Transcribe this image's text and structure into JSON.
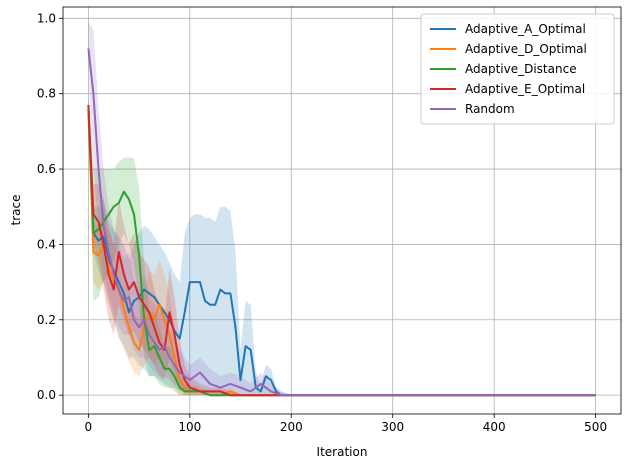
{
  "chart_data": {
    "type": "line",
    "title": "",
    "xlabel": "Iteration",
    "ylabel": "trace",
    "xlim": [
      -25,
      525
    ],
    "ylim": [
      -0.05,
      1.03
    ],
    "x_ticks": [
      0,
      100,
      200,
      300,
      400,
      500
    ],
    "y_ticks": [
      0.0,
      0.2,
      0.4,
      0.6,
      0.8,
      1.0
    ],
    "x_tick_labels": [
      "0",
      "100",
      "200",
      "300",
      "400",
      "500"
    ],
    "y_tick_labels": [
      "0.0",
      "0.2",
      "0.4",
      "0.6",
      "0.8",
      "1.0"
    ],
    "grid": true,
    "legend_position": "top-right",
    "band_opacity": 0.2,
    "series": [
      {
        "name": "Adaptive_A_Optimal",
        "color": "#1f77b4",
        "x": [
          0,
          5,
          10,
          15,
          20,
          25,
          30,
          35,
          40,
          45,
          50,
          55,
          60,
          65,
          70,
          75,
          80,
          85,
          90,
          95,
          100,
          105,
          110,
          115,
          120,
          125,
          130,
          135,
          140,
          145,
          150,
          155,
          160,
          165,
          170,
          175,
          180,
          185,
          190,
          200,
          250,
          300,
          350,
          400,
          450,
          500
        ],
        "y": [
          0.77,
          0.43,
          0.41,
          0.42,
          0.36,
          0.33,
          0.3,
          0.27,
          0.22,
          0.25,
          0.26,
          0.28,
          0.27,
          0.26,
          0.24,
          0.22,
          0.2,
          0.17,
          0.15,
          0.22,
          0.3,
          0.3,
          0.3,
          0.25,
          0.24,
          0.24,
          0.28,
          0.27,
          0.27,
          0.18,
          0.04,
          0.13,
          0.12,
          0.02,
          0.01,
          0.05,
          0.04,
          0.01,
          0.0,
          0.0,
          0.0,
          0.0,
          0.0,
          0.0,
          0.0,
          0.0
        ],
        "lower": [
          0.75,
          0.38,
          0.33,
          0.3,
          0.25,
          0.2,
          0.15,
          0.13,
          0.1,
          0.1,
          0.08,
          0.07,
          0.05,
          0.05,
          0.04,
          0.03,
          0.02,
          0.02,
          0.01,
          0.01,
          0.01,
          0.01,
          0.01,
          0.0,
          0.0,
          0.0,
          0.0,
          0.0,
          0.0,
          0.0,
          0.0,
          0.0,
          0.0,
          0.0,
          0.0,
          0.0,
          0.0,
          0.0,
          0.0,
          0.0,
          0.0,
          0.0,
          0.0,
          0.0,
          0.0,
          0.0
        ],
        "upper": [
          0.79,
          0.5,
          0.5,
          0.52,
          0.46,
          0.44,
          0.42,
          0.4,
          0.36,
          0.4,
          0.43,
          0.45,
          0.44,
          0.42,
          0.4,
          0.38,
          0.35,
          0.32,
          0.3,
          0.43,
          0.47,
          0.48,
          0.48,
          0.47,
          0.47,
          0.46,
          0.5,
          0.5,
          0.49,
          0.38,
          0.12,
          0.25,
          0.24,
          0.06,
          0.03,
          0.08,
          0.07,
          0.02,
          0.01,
          0.0,
          0.0,
          0.0,
          0.0,
          0.0,
          0.0,
          0.0
        ]
      },
      {
        "name": "Adaptive_D_Optimal",
        "color": "#ff7f0e",
        "x": [
          0,
          5,
          10,
          15,
          20,
          25,
          30,
          35,
          40,
          45,
          50,
          55,
          60,
          65,
          70,
          75,
          80,
          85,
          90,
          95,
          100,
          110,
          120,
          130,
          140,
          150,
          160,
          170,
          180,
          190,
          200,
          250,
          300,
          350,
          400,
          450,
          500
        ],
        "y": [
          0.76,
          0.38,
          0.37,
          0.4,
          0.34,
          0.3,
          0.28,
          0.23,
          0.18,
          0.14,
          0.12,
          0.18,
          0.22,
          0.2,
          0.24,
          0.2,
          0.16,
          0.1,
          0.04,
          0.02,
          0.01,
          0.01,
          0.0,
          0.0,
          0.01,
          0.0,
          0.0,
          0.0,
          0.0,
          0.0,
          0.0,
          0.0,
          0.0,
          0.0,
          0.0,
          0.0,
          0.0
        ],
        "lower": [
          0.74,
          0.3,
          0.28,
          0.3,
          0.24,
          0.2,
          0.16,
          0.12,
          0.09,
          0.06,
          0.05,
          0.08,
          0.1,
          0.08,
          0.1,
          0.07,
          0.05,
          0.02,
          0.0,
          0.0,
          0.0,
          0.0,
          0.0,
          0.0,
          0.0,
          0.0,
          0.0,
          0.0,
          0.0,
          0.0,
          0.0,
          0.0,
          0.0,
          0.0,
          0.0,
          0.0,
          0.0
        ],
        "upper": [
          0.78,
          0.46,
          0.45,
          0.5,
          0.44,
          0.4,
          0.38,
          0.34,
          0.28,
          0.22,
          0.2,
          0.28,
          0.33,
          0.32,
          0.36,
          0.32,
          0.27,
          0.18,
          0.08,
          0.05,
          0.03,
          0.02,
          0.01,
          0.01,
          0.02,
          0.0,
          0.0,
          0.0,
          0.0,
          0.0,
          0.0,
          0.0,
          0.0,
          0.0,
          0.0,
          0.0,
          0.0
        ]
      },
      {
        "name": "Adaptive_Distance",
        "color": "#2ca02c",
        "x": [
          0,
          5,
          10,
          15,
          20,
          25,
          30,
          35,
          40,
          45,
          50,
          55,
          60,
          65,
          70,
          75,
          80,
          85,
          90,
          95,
          100,
          110,
          120,
          130,
          140,
          150,
          160,
          170,
          180,
          190,
          200,
          250,
          300,
          350,
          400,
          450,
          500
        ],
        "y": [
          0.76,
          0.43,
          0.44,
          0.46,
          0.48,
          0.5,
          0.51,
          0.54,
          0.52,
          0.48,
          0.37,
          0.2,
          0.12,
          0.13,
          0.1,
          0.07,
          0.07,
          0.05,
          0.02,
          0.01,
          0.01,
          0.01,
          0.0,
          0.0,
          0.0,
          0.0,
          0.0,
          0.0,
          0.0,
          0.0,
          0.0,
          0.0,
          0.0,
          0.0,
          0.0,
          0.0,
          0.0
        ],
        "lower": [
          0.74,
          0.25,
          0.26,
          0.3,
          0.33,
          0.36,
          0.4,
          0.43,
          0.4,
          0.35,
          0.24,
          0.1,
          0.05,
          0.05,
          0.03,
          0.02,
          0.02,
          0.01,
          0.0,
          0.0,
          0.0,
          0.0,
          0.0,
          0.0,
          0.0,
          0.0,
          0.0,
          0.0,
          0.0,
          0.0,
          0.0,
          0.0,
          0.0,
          0.0,
          0.0,
          0.0,
          0.0
        ],
        "upper": [
          0.78,
          0.6,
          0.6,
          0.6,
          0.6,
          0.6,
          0.62,
          0.63,
          0.63,
          0.63,
          0.55,
          0.35,
          0.22,
          0.22,
          0.18,
          0.13,
          0.13,
          0.1,
          0.05,
          0.03,
          0.02,
          0.02,
          0.0,
          0.0,
          0.0,
          0.0,
          0.0,
          0.0,
          0.0,
          0.0,
          0.0,
          0.0,
          0.0,
          0.0,
          0.0,
          0.0,
          0.0
        ]
      },
      {
        "name": "Adaptive_E_Optimal",
        "color": "#d62728",
        "x": [
          0,
          5,
          10,
          15,
          20,
          25,
          30,
          35,
          40,
          45,
          50,
          55,
          60,
          65,
          70,
          75,
          80,
          85,
          90,
          95,
          100,
          110,
          120,
          130,
          140,
          150,
          160,
          170,
          180,
          190,
          200,
          250,
          300,
          350,
          400,
          450,
          500
        ],
        "y": [
          0.77,
          0.48,
          0.46,
          0.4,
          0.32,
          0.28,
          0.38,
          0.32,
          0.28,
          0.3,
          0.26,
          0.24,
          0.22,
          0.18,
          0.14,
          0.12,
          0.22,
          0.16,
          0.08,
          0.04,
          0.02,
          0.01,
          0.01,
          0.01,
          0.0,
          0.0,
          0.0,
          0.0,
          0.0,
          0.0,
          0.0,
          0.0,
          0.0,
          0.0,
          0.0,
          0.0,
          0.0
        ],
        "lower": [
          0.75,
          0.4,
          0.36,
          0.28,
          0.2,
          0.16,
          0.24,
          0.2,
          0.16,
          0.17,
          0.14,
          0.12,
          0.1,
          0.08,
          0.05,
          0.04,
          0.1,
          0.06,
          0.02,
          0.0,
          0.0,
          0.0,
          0.0,
          0.0,
          0.0,
          0.0,
          0.0,
          0.0,
          0.0,
          0.0,
          0.0,
          0.0,
          0.0,
          0.0,
          0.0,
          0.0,
          0.0
        ],
        "upper": [
          0.79,
          0.56,
          0.56,
          0.52,
          0.44,
          0.4,
          0.52,
          0.45,
          0.4,
          0.43,
          0.38,
          0.36,
          0.34,
          0.28,
          0.23,
          0.2,
          0.34,
          0.26,
          0.15,
          0.08,
          0.05,
          0.03,
          0.02,
          0.02,
          0.01,
          0.0,
          0.0,
          0.0,
          0.0,
          0.0,
          0.0,
          0.0,
          0.0,
          0.0,
          0.0,
          0.0,
          0.0
        ]
      },
      {
        "name": "Random",
        "color": "#9467bd",
        "x": [
          0,
          5,
          10,
          15,
          20,
          25,
          30,
          35,
          40,
          45,
          50,
          55,
          60,
          65,
          70,
          75,
          80,
          85,
          90,
          95,
          100,
          110,
          120,
          130,
          140,
          150,
          160,
          170,
          180,
          190,
          200,
          250,
          300,
          350,
          400,
          450,
          500
        ],
        "y": [
          0.92,
          0.8,
          0.6,
          0.45,
          0.38,
          0.32,
          0.28,
          0.25,
          0.26,
          0.2,
          0.18,
          0.2,
          0.16,
          0.14,
          0.12,
          0.13,
          0.1,
          0.08,
          0.06,
          0.05,
          0.04,
          0.06,
          0.03,
          0.02,
          0.03,
          0.02,
          0.01,
          0.03,
          0.01,
          0.0,
          0.0,
          0.0,
          0.0,
          0.0,
          0.0,
          0.0,
          0.0
        ],
        "lower": [
          0.88,
          0.6,
          0.44,
          0.32,
          0.27,
          0.22,
          0.18,
          0.16,
          0.16,
          0.12,
          0.1,
          0.1,
          0.08,
          0.06,
          0.05,
          0.05,
          0.04,
          0.03,
          0.02,
          0.01,
          0.01,
          0.02,
          0.0,
          0.0,
          0.0,
          0.0,
          0.0,
          0.0,
          0.0,
          0.0,
          0.0,
          0.0,
          0.0,
          0.0,
          0.0,
          0.0,
          0.0
        ],
        "upper": [
          0.99,
          0.97,
          0.76,
          0.6,
          0.5,
          0.44,
          0.4,
          0.36,
          0.38,
          0.3,
          0.28,
          0.32,
          0.26,
          0.24,
          0.22,
          0.23,
          0.18,
          0.15,
          0.12,
          0.1,
          0.08,
          0.1,
          0.07,
          0.05,
          0.06,
          0.05,
          0.03,
          0.06,
          0.03,
          0.01,
          0.0,
          0.0,
          0.0,
          0.0,
          0.0,
          0.0,
          0.0
        ]
      }
    ]
  }
}
